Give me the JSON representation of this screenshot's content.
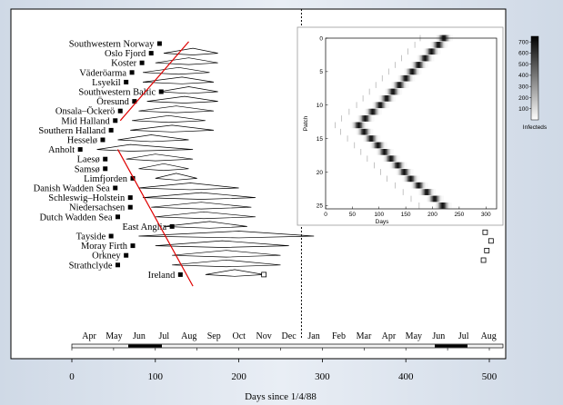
{
  "chart_data": {
    "type": "scatter",
    "x_axis": {
      "title": "Days since 1/4/88",
      "ticks": [
        0,
        100,
        200,
        300,
        400,
        500
      ],
      "range": [
        -15,
        520
      ]
    },
    "months": [
      "Apr",
      "May",
      "Jun",
      "Jul",
      "Aug",
      "Sep",
      "Oct",
      "Nov",
      "Dec",
      "Jan",
      "Feb",
      "Mar",
      "Apr",
      "May",
      "Jun",
      "Jul",
      "Aug"
    ],
    "dashed_line_day": 275,
    "sites": [
      {
        "name": "Southwestern Norway",
        "onset": 105,
        "epidemic": []
      },
      {
        "name": "Oslo Fjord",
        "onset": 95,
        "epidemic": [
          110,
          175,
          145
        ]
      },
      {
        "name": "Koster",
        "onset": 84,
        "epidemic": [
          100,
          175,
          140
        ]
      },
      {
        "name": "Väderöarma",
        "onset": 72,
        "epidemic": [
          85,
          165,
          128
        ]
      },
      {
        "name": "Lsyekil",
        "onset": 65,
        "epidemic": [
          85,
          170,
          132
        ]
      },
      {
        "name": "Southwestern Baltic",
        "onset": 107,
        "epidemic": [
          105,
          175,
          140
        ]
      },
      {
        "name": "Öresund",
        "onset": 75,
        "epidemic": [
          90,
          175,
          135
        ]
      },
      {
        "name": "Onsala–Öckerö",
        "onset": 58,
        "epidemic": [
          80,
          170,
          125
        ]
      },
      {
        "name": "Mid Halland",
        "onset": 52,
        "epidemic": [
          72,
          160,
          116
        ]
      },
      {
        "name": "Southern Halland",
        "onset": 47,
        "epidemic": [
          70,
          170,
          120
        ]
      },
      {
        "name": "Hesselø",
        "onset": 37,
        "epidemic": [
          55,
          140,
          95
        ]
      },
      {
        "name": "Anholt",
        "onset": 10,
        "epidemic": [
          30,
          145,
          70
        ]
      },
      {
        "name": "Laesø",
        "onset": 40,
        "epidemic": [
          65,
          145,
          100
        ]
      },
      {
        "name": "Samsø",
        "onset": 40,
        "epidemic": [
          80,
          140,
          110
        ]
      },
      {
        "name": "Limfjorden",
        "onset": 73,
        "epidemic": [
          100,
          150,
          125
        ]
      },
      {
        "name": "Danish Wadden Sea",
        "onset": 52,
        "epidemic": [
          80,
          200,
          142
        ]
      },
      {
        "name": "Schleswig–Holstein",
        "onset": 70,
        "epidemic": [
          85,
          220,
          155
        ]
      },
      {
        "name": "Niedersachsen",
        "onset": 70,
        "epidemic": [
          95,
          215,
          155
        ]
      },
      {
        "name": "Dutch Wadden Sea",
        "onset": 55,
        "epidemic": [
          100,
          220,
          158
        ]
      },
      {
        "name": "East Anglia",
        "onset": 120,
        "epidemic": [
          110,
          210,
          165
        ]
      },
      {
        "name": "Tayside",
        "onset": 47,
        "epidemic": [
          80,
          290,
          200
        ]
      },
      {
        "name": "Moray Firth",
        "onset": 73,
        "epidemic": [
          100,
          260,
          180
        ]
      },
      {
        "name": "Orkney",
        "onset": 65,
        "epidemic": [
          120,
          250,
          185
        ]
      },
      {
        "name": "Strathclyde",
        "onset": 55,
        "epidemic": [
          120,
          250,
          185
        ]
      },
      {
        "name": "Ireland",
        "onset": 130,
        "epidemic": [
          160,
          230,
          195
        ]
      }
    ],
    "open_markers": [
      {
        "day": 230,
        "row": 24
      },
      {
        "day": 495,
        "row": 19.6
      },
      {
        "day": 502,
        "row": 20.5
      },
      {
        "day": 497,
        "row": 21.5
      },
      {
        "day": 493,
        "row": 22.5
      }
    ],
    "red_lines": [
      {
        "from": [
          58,
          8
        ],
        "to": [
          140,
          -0.2
        ]
      },
      {
        "from": [
          55,
          11
        ],
        "to": [
          145,
          25.2
        ]
      }
    ],
    "inset": {
      "type": "heatmap",
      "xlabel": "Days",
      "ylabel": "Patch",
      "xticks": [
        0,
        50,
        100,
        150,
        200,
        250,
        300
      ],
      "yticks": [
        0,
        5,
        10,
        15,
        20,
        25
      ],
      "xlim": [
        0,
        320
      ],
      "ylim": [
        0,
        25.5
      ],
      "colorbar": {
        "title": "Infecteds",
        "ticks": [
          100,
          200,
          300,
          400,
          500,
          600,
          700
        ],
        "max": 750
      },
      "peaks": [
        {
          "patch": 0,
          "day": 222
        },
        {
          "patch": 1,
          "day": 212
        },
        {
          "patch": 2,
          "day": 199
        },
        {
          "patch": 3,
          "day": 187
        },
        {
          "patch": 4,
          "day": 175
        },
        {
          "patch": 5,
          "day": 163
        },
        {
          "patch": 6,
          "day": 151
        },
        {
          "patch": 7,
          "day": 139
        },
        {
          "patch": 8,
          "day": 127
        },
        {
          "patch": 9,
          "day": 115
        },
        {
          "patch": 10,
          "day": 103
        },
        {
          "patch": 11,
          "day": 89
        },
        {
          "patch": 12,
          "day": 75
        },
        {
          "patch": 13,
          "day": 63
        },
        {
          "patch": 14,
          "day": 73
        },
        {
          "patch": 15,
          "day": 86
        },
        {
          "patch": 16,
          "day": 99
        },
        {
          "patch": 17,
          "day": 111
        },
        {
          "patch": 18,
          "day": 123
        },
        {
          "patch": 19,
          "day": 136
        },
        {
          "patch": 20,
          "day": 148
        },
        {
          "patch": 21,
          "day": 160
        },
        {
          "patch": 22,
          "day": 175
        },
        {
          "patch": 23,
          "day": 190
        },
        {
          "patch": 24,
          "day": 205
        },
        {
          "patch": 25,
          "day": 220
        }
      ]
    }
  }
}
